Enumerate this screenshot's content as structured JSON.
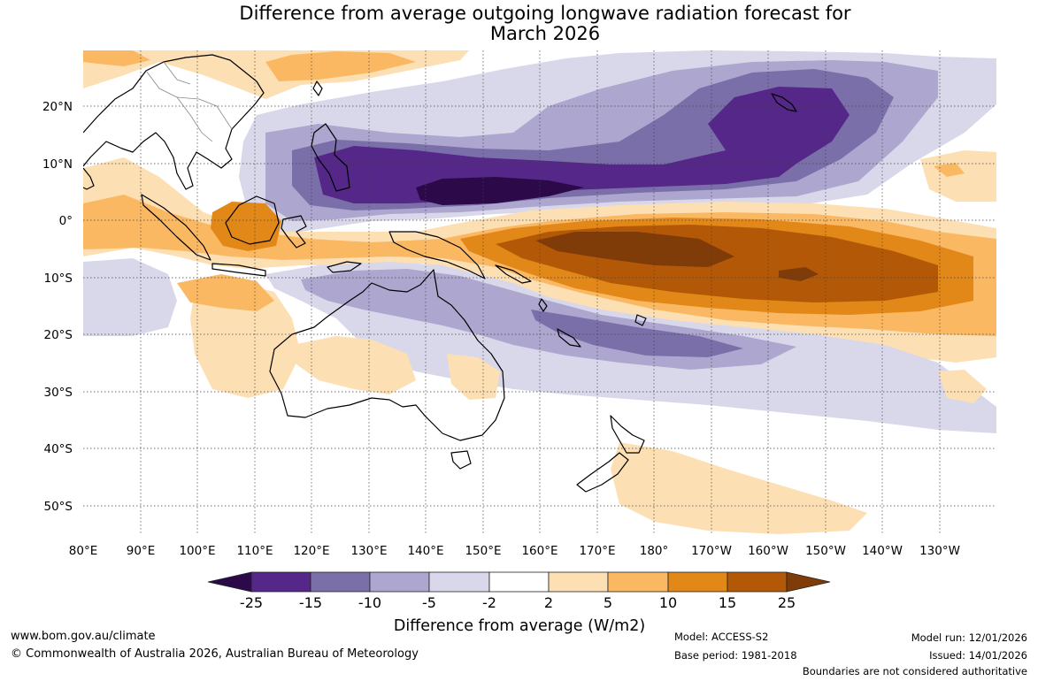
{
  "title": {
    "line1": "Difference from average outgoing longwave radiation forecast for",
    "line2": "March 2026"
  },
  "map": {
    "lat_labels": [
      "20°N",
      "10°N",
      "0°",
      "10°S",
      "20°S",
      "30°S",
      "40°S",
      "50°S"
    ],
    "lon_labels": [
      "80°E",
      "90°E",
      "100°E",
      "110°E",
      "120°E",
      "130°E",
      "140°E",
      "150°E",
      "160°E",
      "170°E",
      "180°",
      "170°W",
      "160°W",
      "150°W",
      "140°W",
      "130°W"
    ]
  },
  "colorbar": {
    "ticks": [
      "-25",
      "-15",
      "-10",
      "-5",
      "-2",
      "2",
      "5",
      "10",
      "15",
      "25"
    ],
    "label": "Difference from average (W/m2)",
    "colors": {
      "lt_neg25": "#2c0a4a",
      "neg25_neg15": "#542788",
      "neg15_neg10": "#7b6faa",
      "neg10_neg5": "#ada6cf",
      "neg5_neg2": "#d9d8ea",
      "neg2_2": "#ffffff",
      "2_5": "#fddfb4",
      "5_10": "#fbb863",
      "10_15": "#e18819",
      "15_25": "#b35806",
      "gt_25": "#7f3b08"
    }
  },
  "footer": {
    "url": "www.bom.gov.au/climate",
    "copyright": "© Commonwealth of Australia 2026, Australian Bureau of Meteorology",
    "model": "Model: ACCESS-S2",
    "base_period": "Base period: 1981-2018",
    "model_run": "Model run: 12/01/2026",
    "issued": "Issued: 14/01/2026",
    "disclaimer": "Boundaries are not considered authoritative"
  }
}
